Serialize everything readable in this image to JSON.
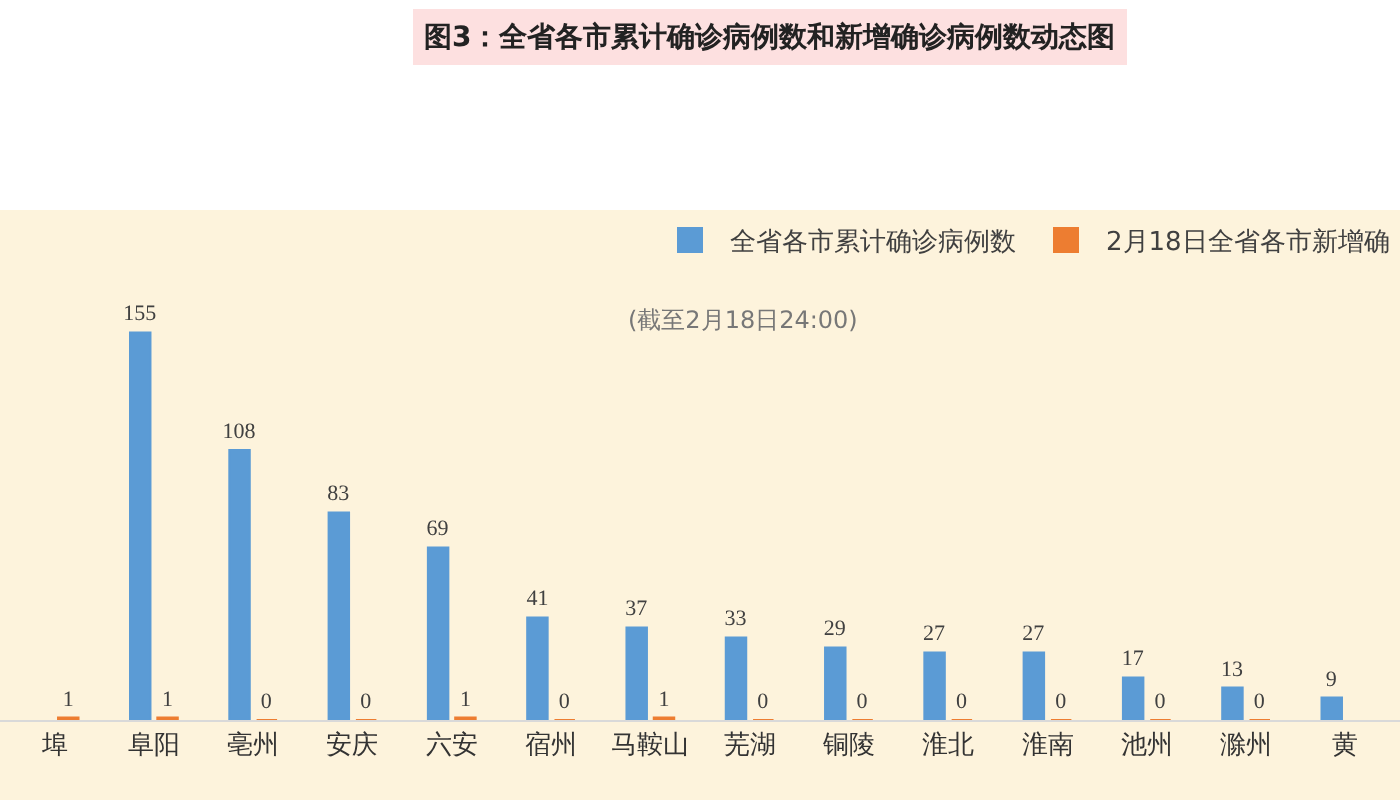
{
  "chart_data": {
    "type": "bar",
    "title": "图3：全省各市累计确诊病例数和新增确诊病例数动态图",
    "subtitle": "(截至2月18日24:00)",
    "categories": [
      "埠",
      "阜阳",
      "亳州",
      "安庆",
      "六安",
      "宿州",
      "马鞍山",
      "芜湖",
      "铜陵",
      "淮北",
      "淮南",
      "池州",
      "滁州",
      "黄"
    ],
    "series": [
      {
        "name": "全省各市累计确诊病例数",
        "color": "#5b9bd5",
        "values": [
          null,
          155,
          108,
          83,
          69,
          41,
          37,
          33,
          29,
          27,
          27,
          17,
          13,
          9
        ]
      },
      {
        "name": "2月18日全省各市新增确",
        "color": "#ed7d31",
        "values": [
          1,
          1,
          0,
          0,
          1,
          0,
          1,
          0,
          0,
          0,
          0,
          0,
          0,
          null
        ]
      }
    ],
    "data_labels": true,
    "legend": "top right",
    "grid": false
  }
}
